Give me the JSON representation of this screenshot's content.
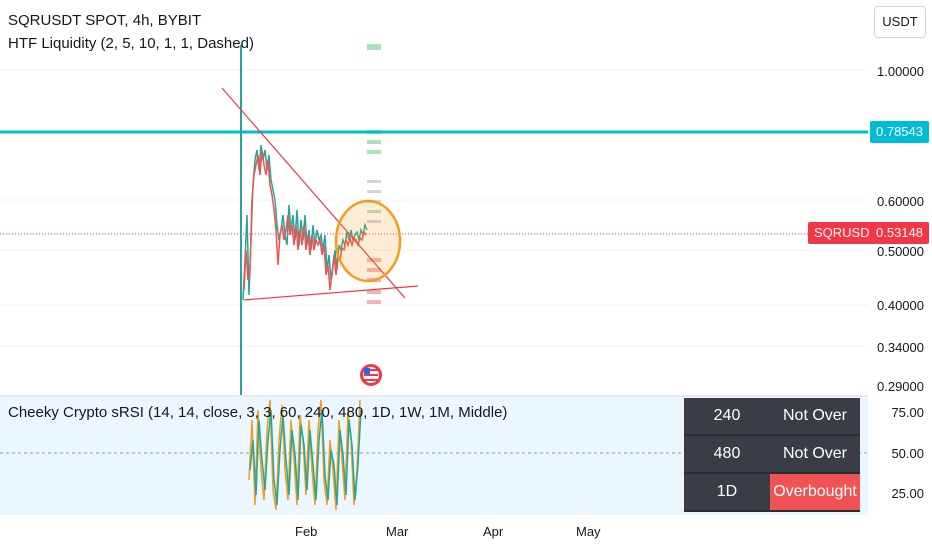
{
  "header": {
    "symbol_line": "SQRUSDT SPOT, 4h, BYBIT",
    "indicator_line": "HTF Liquidity (2, 5, 10, 1, 1, Dashed)"
  },
  "currency_button": "USDT",
  "price_scale": {
    "ticks": [
      "1.00000",
      "0.60000",
      "0.50000",
      "0.40000",
      "0.34000",
      "0.29000"
    ],
    "horizontal_line_value": "0.78543",
    "horizontal_line_color": "#00bcd4",
    "last_price_symbol": "SQRUSDT",
    "last_price_value": "0.53148",
    "last_price_color": "#f23645"
  },
  "sub_pane": {
    "indicator_line": "Cheeky Crypto sRSI (14, 14, close, 3, 3, 60, 240, 480, 1D, 1W, 1M, Middle)",
    "ticks": [
      "75.00",
      "50.00",
      "25.00"
    ],
    "table": [
      {
        "timeframe": "240",
        "status": "Not Over",
        "status_color": "#3a3d45"
      },
      {
        "timeframe": "480",
        "status": "Not Over",
        "status_color": "#3a3d45"
      },
      {
        "timeframe": "1D",
        "status": "Overbought",
        "status_color": "#f05353"
      }
    ]
  },
  "time_axis": [
    "Feb",
    "Mar",
    "Apr",
    "May"
  ],
  "annotations": {
    "trendline_color": "#f23645",
    "circle_color": "#f59c1a",
    "event_icon": "us-flag-icon"
  }
}
